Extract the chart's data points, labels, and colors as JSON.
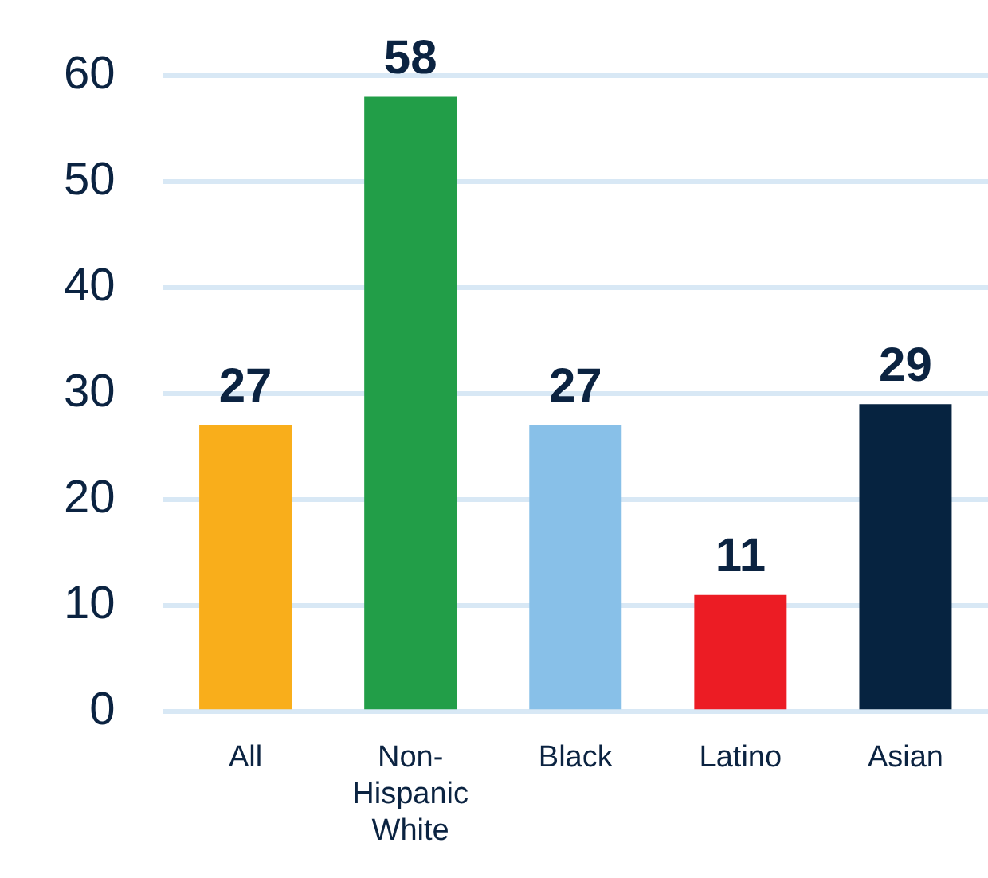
{
  "chart_data": {
    "type": "bar",
    "categories": [
      "All",
      "Non-Hispanic White",
      "Black",
      "Latino",
      "Asian"
    ],
    "values": [
      27,
      58,
      27,
      11,
      29
    ],
    "colors": [
      "#f9ae1b",
      "#229e48",
      "#88c0e8",
      "#ec1c24",
      "#062340"
    ],
    "ylim": [
      0,
      60
    ],
    "yticks": [
      0,
      10,
      20,
      30,
      40,
      50,
      60
    ],
    "grid": "y",
    "data_labels": true
  }
}
